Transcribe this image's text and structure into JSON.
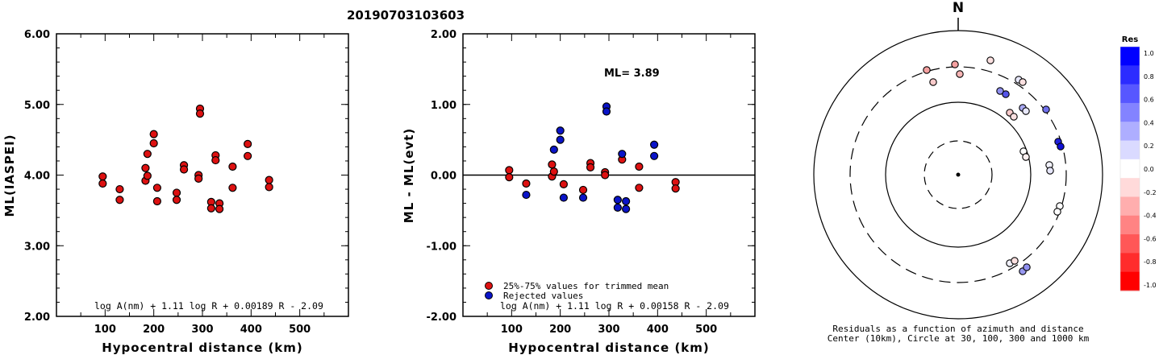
{
  "title": "20190703103603",
  "colors": {
    "accepted": "#dd1111",
    "rejected": "#0a14c8"
  },
  "chart_data": [
    {
      "type": "scatter",
      "xlabel": "Hypocentral distance (km)",
      "ylabel": "ML(IASPEI)",
      "xlim": [
        0,
        600
      ],
      "ylim": [
        2.0,
        6.0
      ],
      "xticks": [
        "100",
        "200",
        "300",
        "400",
        "500"
      ],
      "yticks": [
        "2.00",
        "3.00",
        "4.00",
        "5.00",
        "6.00"
      ],
      "formula": "log A(nm) + 1.11 log R + 0.00189 R - 2.09",
      "series": [
        {
          "color": "#dd1111",
          "points": [
            [
              95,
              3.98
            ],
            [
              95,
              3.88
            ],
            [
              130,
              3.8
            ],
            [
              130,
              3.65
            ],
            [
              183,
              3.92
            ],
            [
              183,
              4.1
            ],
            [
              187,
              4.3
            ],
            [
              187,
              3.99
            ],
            [
              200,
              4.58
            ],
            [
              200,
              4.45
            ],
            [
              207,
              3.82
            ],
            [
              207,
              3.63
            ],
            [
              247,
              3.75
            ],
            [
              247,
              3.65
            ],
            [
              262,
              4.14
            ],
            [
              262,
              4.08
            ],
            [
              292,
              4.0
            ],
            [
              292,
              3.95
            ],
            [
              295,
              4.94
            ],
            [
              295,
              4.87
            ],
            [
              318,
              3.62
            ],
            [
              318,
              3.53
            ],
            [
              327,
              4.28
            ],
            [
              327,
              4.21
            ],
            [
              335,
              3.6
            ],
            [
              335,
              3.52
            ],
            [
              362,
              4.12
            ],
            [
              362,
              3.82
            ],
            [
              393,
              4.44
            ],
            [
              393,
              4.27
            ],
            [
              437,
              3.93
            ],
            [
              437,
              3.83
            ]
          ]
        }
      ]
    },
    {
      "type": "scatter",
      "xlabel": "Hypocentral distance (km)",
      "ylabel": "ML - ML(evt)",
      "xlim": [
        0,
        600
      ],
      "ylim": [
        -2.0,
        2.0
      ],
      "xticks": [
        "100",
        "200",
        "300",
        "400",
        "500"
      ],
      "yticks": [
        "-2.00",
        "-1.00",
        "0.00",
        "1.00",
        "2.00"
      ],
      "annotation": "ML= 3.89",
      "formula": "log A(nm) + 1.11 log R + 0.00158 R - 2.09",
      "series": [
        {
          "name": "25%-75% values for trimmed mean",
          "color": "#dd1111",
          "points": [
            [
              95,
              0.07
            ],
            [
              95,
              -0.03
            ],
            [
              130,
              -0.12
            ],
            [
              183,
              0.15
            ],
            [
              183,
              -0.02
            ],
            [
              187,
              0.05
            ],
            [
              207,
              -0.13
            ],
            [
              247,
              -0.21
            ],
            [
              262,
              0.17
            ],
            [
              262,
              0.11
            ],
            [
              292,
              0.04
            ],
            [
              292,
              0.0
            ],
            [
              327,
              0.22
            ],
            [
              362,
              0.12
            ],
            [
              362,
              -0.18
            ],
            [
              437,
              -0.1
            ],
            [
              437,
              -0.19
            ]
          ]
        },
        {
          "name": "Rejected values",
          "color": "#0a14c8",
          "points": [
            [
              130,
              -0.28
            ],
            [
              187,
              0.36
            ],
            [
              200,
              0.63
            ],
            [
              200,
              0.5
            ],
            [
              207,
              -0.32
            ],
            [
              247,
              -0.32
            ],
            [
              295,
              0.97
            ],
            [
              295,
              0.9
            ],
            [
              318,
              -0.35
            ],
            [
              318,
              -0.46
            ],
            [
              327,
              0.3
            ],
            [
              335,
              -0.37
            ],
            [
              335,
              -0.48
            ],
            [
              393,
              0.43
            ],
            [
              393,
              0.27
            ]
          ]
        }
      ]
    },
    {
      "type": "scatter",
      "title": "N",
      "caption_line1": "Residuals as a function of azimuth and distance",
      "caption_line2": "Center (10km), Circle at 30, 100, 300 and 1000 km",
      "colorbar_title": "Res",
      "colorbar_ticks": [
        "1.0",
        "0.8",
        "0.6",
        "0.4",
        "0.2",
        "0.0",
        "-0.2",
        "-0.4",
        "-0.6",
        "-0.8",
        "-1.0"
      ],
      "stations": [
        [
          1149,
          87,
          "#f4a0a0"
        ],
        [
          1157,
          102,
          "#f8caca"
        ],
        [
          1184,
          80,
          "#f4a0a0"
        ],
        [
          1190,
          92,
          "#f6b4b4"
        ],
        [
          1228,
          75,
          "#fbe0e0"
        ],
        [
          1240,
          113,
          "#8f8ff0"
        ],
        [
          1247,
          117,
          "#5555e8"
        ],
        [
          1263,
          99,
          "#e8e8fc"
        ],
        [
          1268,
          102,
          "#fbe0e0"
        ],
        [
          1252,
          140,
          "#f8caca"
        ],
        [
          1257,
          145,
          "#fbe0e0"
        ],
        [
          1268,
          134,
          "#a8a8f2"
        ],
        [
          1272,
          138,
          "#e8e8fc"
        ],
        [
          1297,
          136,
          "#7070ec"
        ],
        [
          1312,
          176,
          "#2020dc"
        ],
        [
          1315,
          182,
          "#1010d8"
        ],
        [
          1269,
          188,
          "#ffffff"
        ],
        [
          1272,
          195,
          "#fdf0f0"
        ],
        [
          1301,
          205,
          "#f2f2fe"
        ],
        [
          1302,
          212,
          "#e6e6fb"
        ],
        [
          1314,
          256,
          "#ffffff"
        ],
        [
          1311,
          263,
          "#ffffff"
        ],
        [
          1252,
          327,
          "#f2f2fe"
        ],
        [
          1258,
          324,
          "#fbe0e0"
        ],
        [
          1268,
          337,
          "#9898f0"
        ],
        [
          1273,
          332,
          "#9090f0"
        ]
      ]
    }
  ],
  "legend": {
    "accepted": "25%-75% values for trimmed mean",
    "rejected": "Rejected values"
  }
}
